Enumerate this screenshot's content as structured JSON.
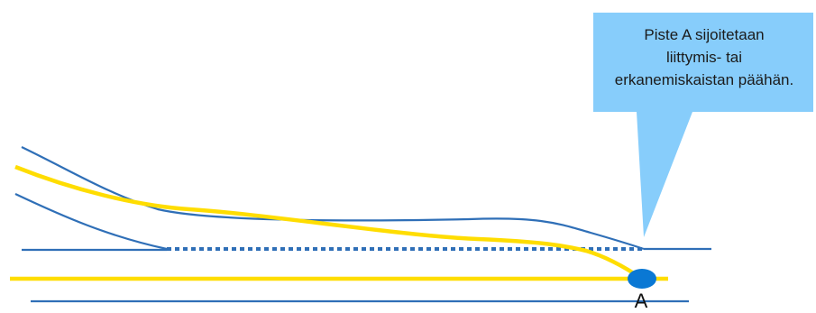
{
  "colors": {
    "road_edge": "#2f6fb7",
    "road_center": "#ffdd00",
    "callout_fill": "#87cdfb",
    "point_fill": "#0a78d4",
    "text": "#1b1b1b"
  },
  "callout": {
    "lines": [
      "Piste A sijoitetaan",
      "liittymis- tai",
      "erkanemiskaistan päähän."
    ]
  },
  "point": {
    "label": "A"
  }
}
